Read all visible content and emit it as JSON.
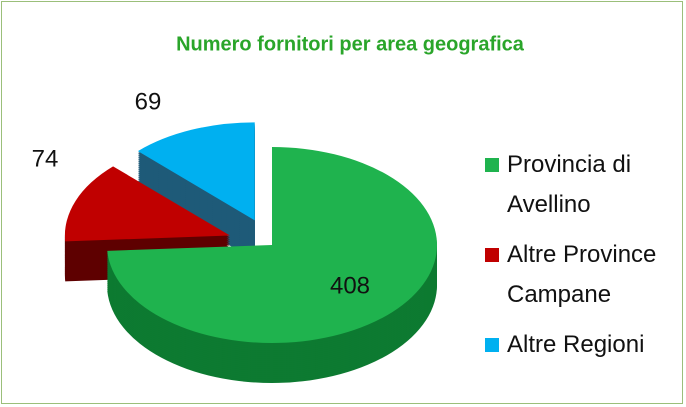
{
  "chart_data": {
    "type": "pie",
    "title": "Numero fornitori per area geografica",
    "categories": [
      "Provincia di Avellino",
      "Altre Province Campane",
      "Altre Regioni"
    ],
    "values": [
      408,
      74,
      69
    ],
    "colors": [
      "#1fb34e",
      "#c00000",
      "#00b0f0"
    ],
    "side_colors": [
      "#0d7a31",
      "#5e0000",
      "#1e5a78"
    ],
    "legend": "right",
    "three_d": true
  }
}
